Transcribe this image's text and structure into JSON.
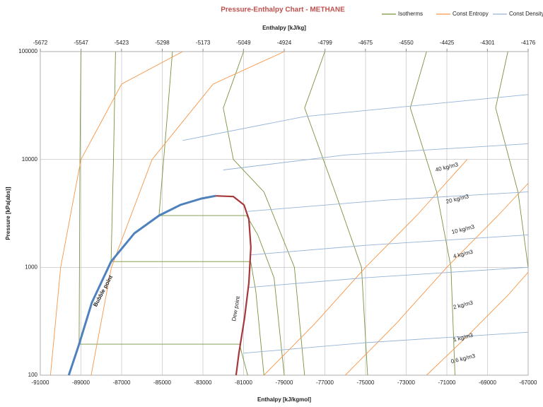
{
  "chart_data": {
    "type": "line",
    "title": "Pressure-Enthalpy Chart - METHANE",
    "xlabel": "Enthalpy [kJ/kgmol]",
    "x2label": "Enthalpy [kJ/kg]",
    "ylabel": "Pressure [kPa(abs)]",
    "xlim": [
      -91000,
      -67000
    ],
    "xticks": [
      -91000,
      -89000,
      -87000,
      -85000,
      -83000,
      -81000,
      -79000,
      -77000,
      -75000,
      -73000,
      -71000,
      -69000,
      -67000
    ],
    "x2lim": [
      -5672,
      -4176
    ],
    "x2ticks": [
      -5672,
      -5547,
      -5423,
      -5298,
      -5173,
      -5049,
      -4924,
      -4799,
      -4675,
      -4550,
      -4425,
      -4301,
      -4176
    ],
    "ylim": [
      100,
      100000
    ],
    "yticks": [
      100,
      1000,
      10000,
      100000
    ],
    "ylog": true,
    "grid": true,
    "legend": "top-right",
    "series": [
      {
        "name": "Isotherms",
        "color": "#77933c",
        "x": [
          -89000,
          -89050,
          -89090,
          -81200,
          -81050,
          -80800,
          null,
          -87300,
          -87400,
          -87520,
          -80650,
          -80400,
          -80000,
          null,
          -84500,
          -84800,
          -85160,
          -80850,
          -80300,
          -79500,
          -79000,
          null,
          -81000,
          -82000,
          -81500,
          -80000,
          -78500,
          -78000,
          null,
          -77000,
          -78000,
          -76500,
          -75200,
          -74900,
          null,
          -72000,
          -72800,
          -71500,
          -70800,
          -70600,
          null,
          -68000,
          -68600,
          -67500,
          -67000
        ],
        "values": [
          100000,
          10000,
          194,
          194,
          150,
          100,
          null,
          100000,
          10000,
          1130,
          1130,
          600,
          100,
          null,
          100000,
          20000,
          3020,
          3020,
          2000,
          800,
          100,
          null,
          100000,
          30000,
          10000,
          5000,
          1000,
          100,
          null,
          100000,
          30000,
          5000,
          1000,
          100,
          null,
          100000,
          30000,
          5000,
          1000,
          100,
          null,
          100000,
          30000,
          5000,
          1000
        ]
      },
      {
        "name": "Const Entropy",
        "color": "#f79646",
        "x": [
          -80000,
          -77500,
          -75000,
          -72500,
          -70000,
          null,
          -76000,
          -73500,
          -71000,
          -68500,
          -67000,
          null,
          -72000,
          -70000,
          -68000,
          -67000,
          null,
          -90500,
          -90000,
          -89000,
          -87000,
          -84000,
          null,
          -88500,
          -87500,
          -85500,
          -82500,
          -79000
        ],
        "values": [
          100,
          300,
          1000,
          3000,
          10000,
          null,
          100,
          300,
          1000,
          3000,
          6000,
          null,
          100,
          230,
          550,
          900,
          null,
          100,
          1000,
          10000,
          50000,
          100000,
          null,
          100,
          1000,
          10000,
          50000,
          100000
        ]
      },
      {
        "name": "Const Density",
        "color": "#95b3d7",
        "x": [
          -81000,
          -75000,
          -67000,
          null,
          -80800,
          -75000,
          -67000,
          null,
          -80700,
          -75000,
          -67000,
          null,
          -80800,
          -74000,
          -67000,
          null,
          -82000,
          -76000,
          -67000,
          null,
          -84000,
          -78000,
          -67000
        ],
        "values": [
          160,
          200,
          250,
          null,
          650,
          800,
          1000,
          null,
          1300,
          1600,
          2000,
          null,
          3300,
          4200,
          5000,
          null,
          8000,
          11000,
          14000,
          null,
          15000,
          25000,
          40000
        ]
      }
    ],
    "bubble": {
      "label": "Bubble point",
      "color": "#4f81bd",
      "x": [
        -89600,
        -89090,
        -88460,
        -87520,
        -86370,
        -85160,
        -84110,
        -83070,
        -82370
      ],
      "values": [
        100,
        194,
        473,
        1130,
        2070,
        3020,
        3790,
        4340,
        4600
      ]
    },
    "dew": {
      "label": "Dew point",
      "color": "#a6373a",
      "x": [
        -82370,
        -81500,
        -80980,
        -80740,
        -80640,
        -80740,
        -80950,
        -81230,
        -81370
      ],
      "values": [
        4600,
        4530,
        3790,
        2800,
        1530,
        720,
        340,
        160,
        100
      ]
    },
    "annotations": [
      "40 kg/m3",
      "20 kg/m3",
      "10 kg/m3",
      "4 kg/m3",
      "2 kg/m3",
      "1 kg/m3",
      "0.6 kg/m3"
    ]
  }
}
